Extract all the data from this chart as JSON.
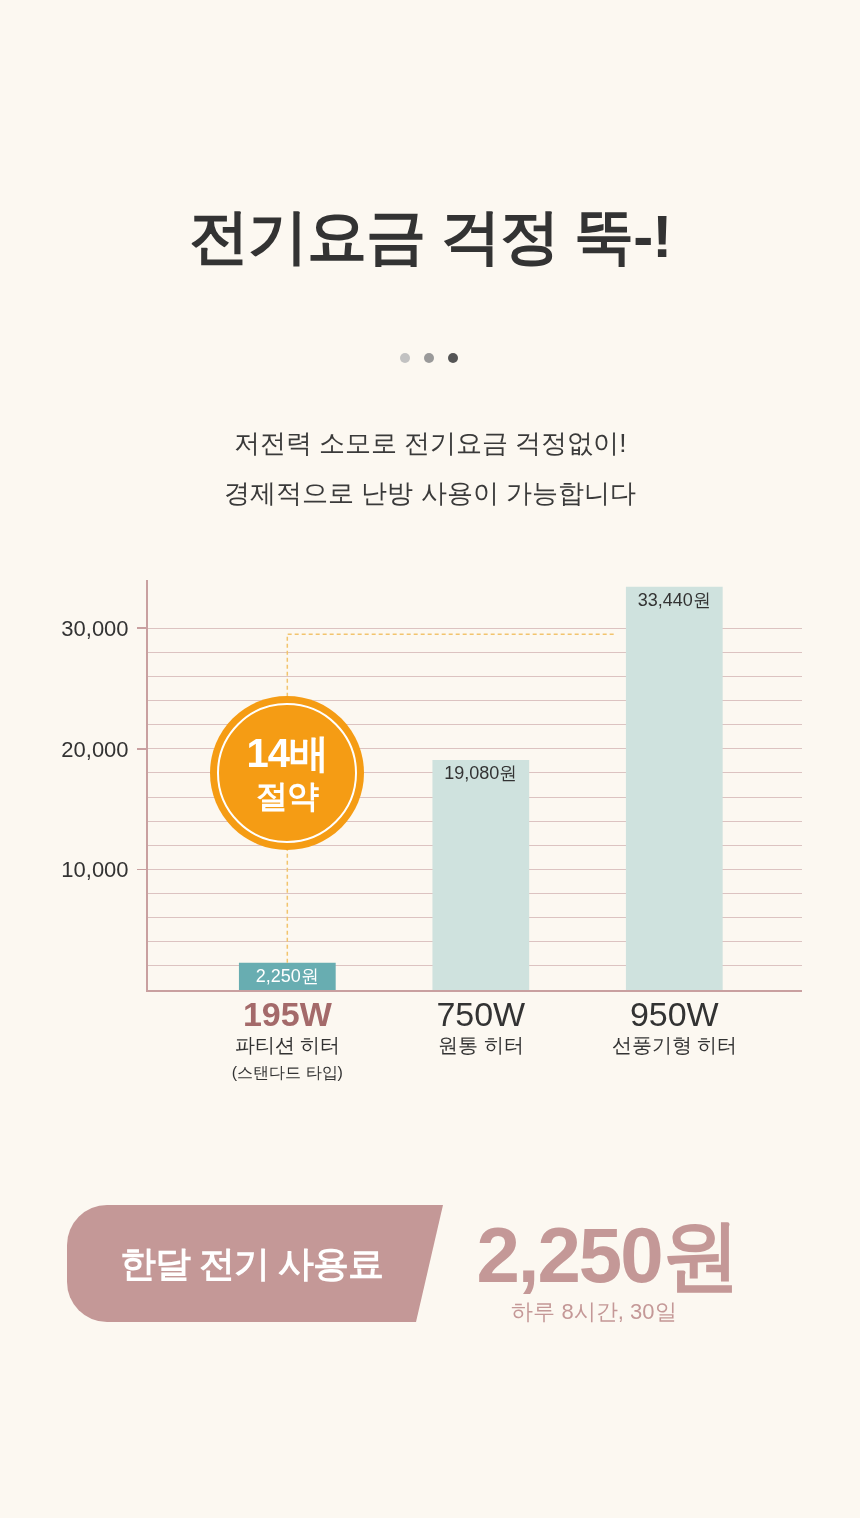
{
  "chart_data": {
    "type": "bar",
    "title": "전기요금 걱정 뚝-!",
    "subtitle": "저전력 소모로 전기요금 걱정없이!\n경제적으로 난방 사용이 가능합니다",
    "categories": [
      "195W\n파티션 히터\n(스탠다드 타입)",
      "750W\n원통 히터",
      "950W\n선풍기형 히터"
    ],
    "values": [
      2250,
      19080,
      33440
    ],
    "colors": [
      "#68adb1",
      "#cfe2de",
      "#cfe2de"
    ],
    "value_labels": [
      "2,250원",
      "19,080원",
      "33,440원"
    ],
    "ylim": [
      0,
      34000
    ],
    "yticks": [
      {
        "value": 2000,
        "label": null
      },
      {
        "value": 4000,
        "label": null
      },
      {
        "value": 6000,
        "label": null
      },
      {
        "value": 8000,
        "label": null
      },
      {
        "value": 10000,
        "label": "10,000"
      },
      {
        "value": 12000,
        "label": null
      },
      {
        "value": 14000,
        "label": null
      },
      {
        "value": 16000,
        "label": null
      },
      {
        "value": 18000,
        "label": null
      },
      {
        "value": 20000,
        "label": "20,000"
      },
      {
        "value": 22000,
        "label": null
      },
      {
        "value": 24000,
        "label": null
      },
      {
        "value": 26000,
        "label": null
      },
      {
        "value": 28000,
        "label": null
      },
      {
        "value": 30000,
        "label": "30,000"
      }
    ],
    "grid": "y",
    "annotations": [
      "14배\n절약",
      "한달 전기 사용료",
      "2,250원",
      "하루 8시간, 30일"
    ]
  }
}
